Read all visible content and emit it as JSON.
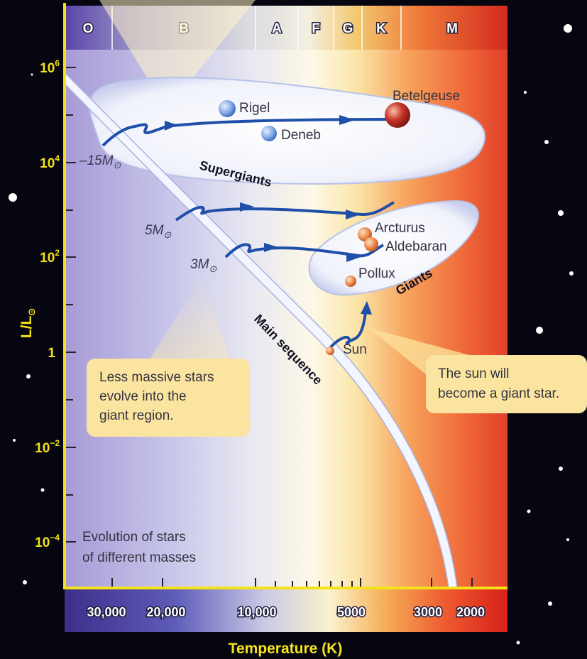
{
  "spectral_classes": [
    "O",
    "B",
    "A",
    "F",
    "G",
    "K",
    "M"
  ],
  "y_axis": {
    "title": "L/L",
    "title_sub": "⊙",
    "ticks": [
      {
        "base": "10",
        "exp": "6"
      },
      {
        "base": "10",
        "exp": "4"
      },
      {
        "base": "10",
        "exp": "2"
      },
      {
        "base": "1",
        "exp": ""
      },
      {
        "base": "10",
        "exp": "−2"
      },
      {
        "base": "10",
        "exp": "−4"
      }
    ]
  },
  "x_axis": {
    "title": "Temperature (K)",
    "ticks": [
      "30,000",
      "20,000",
      "10,000",
      "5000",
      "3000",
      "2000"
    ]
  },
  "stars": {
    "rigel": "Rigel",
    "deneb": "Deneb",
    "betelgeuse": "Betelgeuse",
    "arcturus": "Arcturus",
    "aldebaran": "Aldebaran",
    "pollux": "Pollux",
    "sun": "Sun"
  },
  "regions": {
    "supergiants": "Supergiants",
    "giants": "Giants",
    "main_sequence": "Main sequence"
  },
  "masses": {
    "m15": "15M",
    "m5": "5M",
    "m3": "3M",
    "sun_symbol": "⊙"
  },
  "notes": {
    "less_massive": [
      "Less massive stars",
      "evolve into the",
      "giant region."
    ],
    "sun_giant": [
      "The sun will",
      "become a giant star."
    ],
    "evolution": [
      "Evolution of stars",
      "of different masses"
    ]
  },
  "colors": {
    "axis": "#f4e21a",
    "track": "#1f4fa8",
    "region": "#e8ecf8"
  }
}
